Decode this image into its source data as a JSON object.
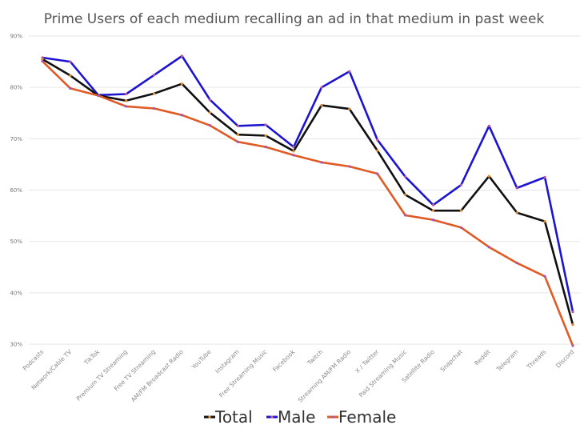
{
  "chart_data": {
    "type": "line",
    "title": "Prime Users of each medium recalling an ad in that medium in past week",
    "xlabel": "",
    "ylabel": "",
    "ylim": [
      30,
      90
    ],
    "yticks": [
      30,
      40,
      50,
      60,
      70,
      80,
      90
    ],
    "ytick_suffix": "%",
    "grid": true,
    "legend_position": "bottom",
    "categories": [
      "Podcasts",
      "Network/Cable TV",
      "TikTok",
      "Premium TV Streaming",
      "Free TV Streaming",
      "AM/FM Broadcast Radio",
      "YouTube",
      "Instagram",
      "Free Streaming Music",
      "Facebook",
      "Twitch",
      "Streaming AM/FM Radio",
      "X / Twitter",
      "Paid Streaming Music",
      "Satellite Radio",
      "Snapchat",
      "Reddit",
      "Telegram",
      "Threads",
      "Discord"
    ],
    "series": [
      {
        "name": "Total",
        "color": "#111111",
        "marker_color": "#e0892a",
        "values": [
          85.5,
          82.3,
          78.4,
          77.4,
          78.8,
          80.7,
          75.1,
          70.8,
          70.6,
          67.6,
          76.5,
          75.8,
          67.7,
          59.1,
          56.0,
          56.0,
          62.7,
          55.6,
          53.9,
          33.8
        ]
      },
      {
        "name": "Male",
        "color": "#1d14d1",
        "marker_color": "#b85a9a",
        "values": [
          85.8,
          85.0,
          78.5,
          78.7,
          82.4,
          86.1,
          77.6,
          72.5,
          72.7,
          68.4,
          80.0,
          83.1,
          69.8,
          62.6,
          57.1,
          61.0,
          72.5,
          60.4,
          62.5,
          36.3
        ]
      },
      {
        "name": "Female",
        "color": "#e05a26",
        "marker_color": "#a055b8",
        "values": [
          85.1,
          79.8,
          78.4,
          76.3,
          75.9,
          74.6,
          72.6,
          69.4,
          68.4,
          66.8,
          65.4,
          64.6,
          63.2,
          55.1,
          54.2,
          52.7,
          48.9,
          45.8,
          43.2,
          29.7
        ]
      }
    ]
  }
}
